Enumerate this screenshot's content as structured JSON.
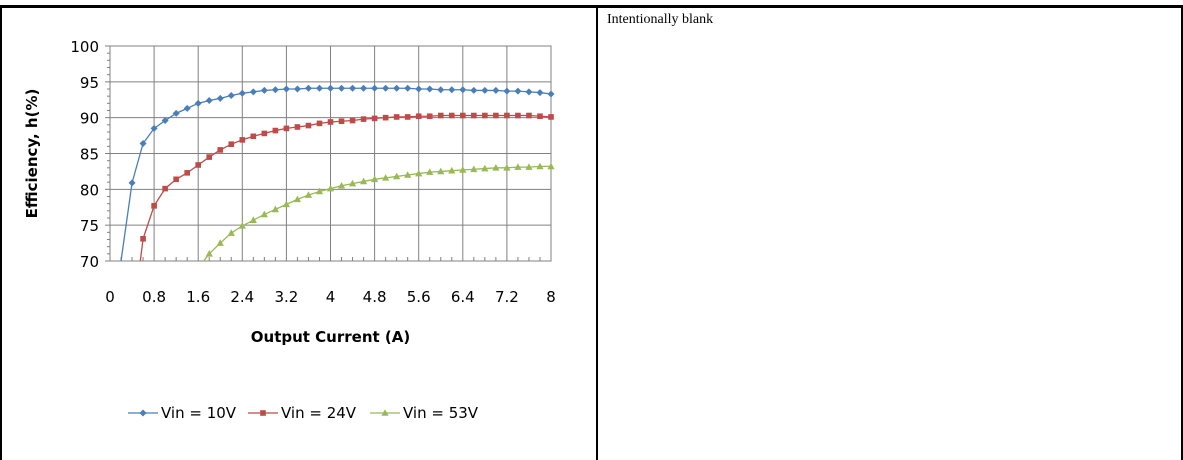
{
  "right_cell": {
    "text": "Intentionally blank"
  },
  "chart_data": {
    "type": "line",
    "title": "",
    "xlabel": "Output Current (A)",
    "ylabel": "Efficiency, h(%)",
    "xlim": [
      0,
      8
    ],
    "ylim": [
      70,
      100
    ],
    "x_ticks": [
      "0",
      "0.8",
      "1.6",
      "2.4",
      "3.2",
      "4",
      "4.8",
      "5.6",
      "6.4",
      "7.2",
      "8"
    ],
    "y_ticks": [
      "70",
      "75",
      "80",
      "85",
      "90",
      "95",
      "100"
    ],
    "grid": true,
    "legend_position": "bottom",
    "series": [
      {
        "name": "Vin = 10V",
        "color": "#4a7ebb",
        "marker": "diamond",
        "x": [
          0.2,
          0.4,
          0.6,
          0.8,
          1.0,
          1.2,
          1.4,
          1.6,
          1.8,
          2.0,
          2.2,
          2.4,
          2.6,
          2.8,
          3.0,
          3.2,
          3.4,
          3.6,
          3.8,
          4.0,
          4.2,
          4.4,
          4.6,
          4.8,
          5.0,
          5.2,
          5.4,
          5.6,
          5.8,
          6.0,
          6.2,
          6.4,
          6.6,
          6.8,
          7.0,
          7.2,
          7.4,
          7.6,
          7.8,
          8.0
        ],
        "y": [
          70,
          80.9,
          86.4,
          88.5,
          89.6,
          90.6,
          91.3,
          92.0,
          92.4,
          92.7,
          93.1,
          93.4,
          93.6,
          93.8,
          93.9,
          94.0,
          94.0,
          94.1,
          94.1,
          94.1,
          94.1,
          94.1,
          94.1,
          94.1,
          94.1,
          94.1,
          94.1,
          94.0,
          94.0,
          93.9,
          93.9,
          93.9,
          93.8,
          93.8,
          93.8,
          93.7,
          93.7,
          93.6,
          93.5,
          93.3
        ]
      },
      {
        "name": "Vin = 24V",
        "color": "#be4b48",
        "marker": "square",
        "x": [
          0.55,
          0.6,
          0.8,
          1.0,
          1.2,
          1.4,
          1.6,
          1.8,
          2.0,
          2.2,
          2.4,
          2.6,
          2.8,
          3.0,
          3.2,
          3.4,
          3.6,
          3.8,
          4.0,
          4.2,
          4.4,
          4.6,
          4.8,
          5.0,
          5.2,
          5.4,
          5.6,
          5.8,
          6.0,
          6.2,
          6.4,
          6.6,
          6.8,
          7.0,
          7.2,
          7.4,
          7.6,
          7.8,
          8.0
        ],
        "y": [
          70,
          73.1,
          77.7,
          80.1,
          81.4,
          82.3,
          83.4,
          84.5,
          85.5,
          86.3,
          86.9,
          87.4,
          87.8,
          88.2,
          88.5,
          88.7,
          88.9,
          89.2,
          89.4,
          89.5,
          89.6,
          89.8,
          89.9,
          90.0,
          90.1,
          90.1,
          90.2,
          90.2,
          90.3,
          90.3,
          90.3,
          90.3,
          90.3,
          90.3,
          90.3,
          90.3,
          90.3,
          90.2,
          90.1
        ]
      },
      {
        "name": "Vin = 53V",
        "color": "#98b954",
        "marker": "triangle",
        "x": [
          1.7,
          1.8,
          2.0,
          2.2,
          2.4,
          2.6,
          2.8,
          3.0,
          3.2,
          3.4,
          3.6,
          3.8,
          4.0,
          4.2,
          4.4,
          4.6,
          4.8,
          5.0,
          5.2,
          5.4,
          5.6,
          5.8,
          6.0,
          6.2,
          6.4,
          6.6,
          6.8,
          7.0,
          7.2,
          7.4,
          7.6,
          7.8,
          8.0
        ],
        "y": [
          70,
          71.0,
          72.5,
          73.9,
          74.9,
          75.7,
          76.5,
          77.2,
          77.9,
          78.6,
          79.2,
          79.7,
          80.1,
          80.5,
          80.8,
          81.1,
          81.4,
          81.6,
          81.8,
          82.0,
          82.2,
          82.4,
          82.5,
          82.6,
          82.7,
          82.8,
          82.9,
          83.0,
          83.0,
          83.1,
          83.1,
          83.2,
          83.2
        ]
      }
    ]
  }
}
